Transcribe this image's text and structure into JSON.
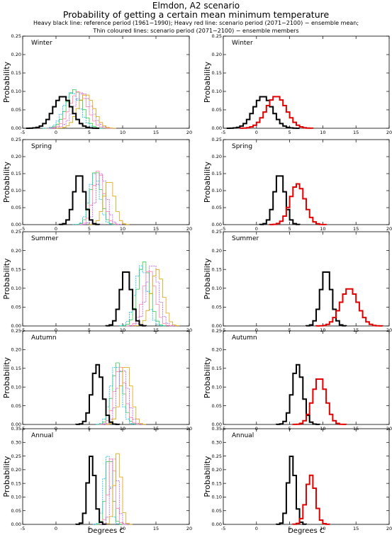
{
  "header": {
    "title": "Elmdon, A2 scenario",
    "subtitle": "Probability of getting a certain mean minimum temperature",
    "legend_line1": "Heavy black line: reference period (1961−1990); Heavy red line: scenario period (2071−2100) − ensemble mean;",
    "legend_line2": "Thin coloured lines: scenario period (2071−2100) − ensemble members"
  },
  "colors": {
    "reference": "#000000",
    "scenario_mean": "#e00000",
    "members": [
      "#000000",
      "#2ecc40",
      "#00b5e2",
      "#ff7faa",
      "#b44fe0",
      "#e0a000"
    ]
  },
  "chart_data": {
    "type": "histogram-step",
    "xlabel": "Degrees C",
    "ylabel": "Probability",
    "xlim": [
      -5,
      20
    ],
    "x_ticks": [
      -5,
      0,
      5,
      10,
      15,
      20
    ],
    "panels": [
      {
        "season": "Winter",
        "ylim": [
          0,
          0.25
        ],
        "y_ticks": [
          "0.00",
          "0.05",
          "0.10",
          "0.15",
          "0.20",
          "0.25"
        ],
        "reference": {
          "mean": 1.0,
          "sd": 1.4,
          "peak": 0.087
        },
        "scenario_mean": {
          "mean": 3.0,
          "sd": 1.5,
          "peak": 0.087
        },
        "members": [
          {
            "mean": 2.8,
            "sd": 1.2,
            "peak": 0.105
          },
          {
            "mean": 2.4,
            "sd": 1.2,
            "peak": 0.098
          },
          {
            "mean": 3.4,
            "sd": 1.3,
            "peak": 0.1
          },
          {
            "mean": 4.0,
            "sd": 1.3,
            "peak": 0.095
          },
          {
            "mean": 4.5,
            "sd": 1.2,
            "peak": 0.092
          }
        ]
      },
      {
        "season": "Spring",
        "ylim": [
          0,
          0.25
        ],
        "y_ticks": [
          "0.00",
          "0.05",
          "0.10",
          "0.15",
          "0.20",
          "0.25"
        ],
        "reference": {
          "mean": 3.5,
          "sd": 0.8,
          "peak": 0.15
        },
        "scenario_mean": {
          "mean": 6.2,
          "sd": 1.1,
          "peak": 0.12
        },
        "members": [
          {
            "mean": 6.0,
            "sd": 0.8,
            "peak": 0.16
          },
          {
            "mean": 5.8,
            "sd": 0.8,
            "peak": 0.15
          },
          {
            "mean": 6.4,
            "sd": 0.8,
            "peak": 0.16
          },
          {
            "mean": 6.8,
            "sd": 0.8,
            "peak": 0.15
          },
          {
            "mean": 8.0,
            "sd": 0.8,
            "peak": 0.13
          }
        ]
      },
      {
        "season": "Summer",
        "ylim": [
          0,
          0.25
        ],
        "y_ticks": [
          "0.00",
          "0.05",
          "0.10",
          "0.15",
          "0.20",
          "0.25"
        ],
        "reference": {
          "mean": 10.5,
          "sd": 0.8,
          "peak": 0.15
        },
        "scenario_mean": {
          "mean": 14.0,
          "sd": 1.3,
          "peak": 0.1
        },
        "members": [
          {
            "mean": 13.2,
            "sd": 0.9,
            "peak": 0.17
          },
          {
            "mean": 12.8,
            "sd": 0.9,
            "peak": 0.16
          },
          {
            "mean": 14.0,
            "sd": 0.9,
            "peak": 0.15
          },
          {
            "mean": 14.5,
            "sd": 0.9,
            "peak": 0.165
          },
          {
            "mean": 15.2,
            "sd": 0.9,
            "peak": 0.15
          }
        ]
      },
      {
        "season": "Autumn",
        "ylim": [
          0,
          0.25
        ],
        "y_ticks": [
          "0.00",
          "0.05",
          "0.10",
          "0.15",
          "0.20",
          "0.25"
        ],
        "reference": {
          "mean": 6.2,
          "sd": 0.8,
          "peak": 0.16
        },
        "scenario_mean": {
          "mean": 9.5,
          "sd": 1.0,
          "peak": 0.125
        },
        "members": [
          {
            "mean": 9.3,
            "sd": 0.8,
            "peak": 0.165
          },
          {
            "mean": 9.0,
            "sd": 0.8,
            "peak": 0.16
          },
          {
            "mean": 9.6,
            "sd": 0.8,
            "peak": 0.155
          },
          {
            "mean": 10.0,
            "sd": 0.8,
            "peak": 0.15
          },
          {
            "mean": 10.5,
            "sd": 0.8,
            "peak": 0.16
          }
        ]
      },
      {
        "season": "Annual",
        "ylim": [
          0,
          0.35
        ],
        "y_ticks": [
          "0.00",
          "0.05",
          "0.10",
          "0.15",
          "0.20",
          "0.25",
          "0.30",
          "0.35"
        ],
        "reference": {
          "mean": 5.3,
          "sd": 0.55,
          "peak": 0.25
        },
        "scenario_mean": {
          "mean": 8.2,
          "sd": 0.7,
          "peak": 0.18
        },
        "members": [
          {
            "mean": 8.0,
            "sd": 0.5,
            "peak": 0.26
          },
          {
            "mean": 7.7,
            "sd": 0.5,
            "peak": 0.25
          },
          {
            "mean": 8.4,
            "sd": 0.5,
            "peak": 0.25
          },
          {
            "mean": 8.8,
            "sd": 0.5,
            "peak": 0.24
          },
          {
            "mean": 9.3,
            "sd": 0.5,
            "peak": 0.26
          }
        ]
      }
    ]
  }
}
